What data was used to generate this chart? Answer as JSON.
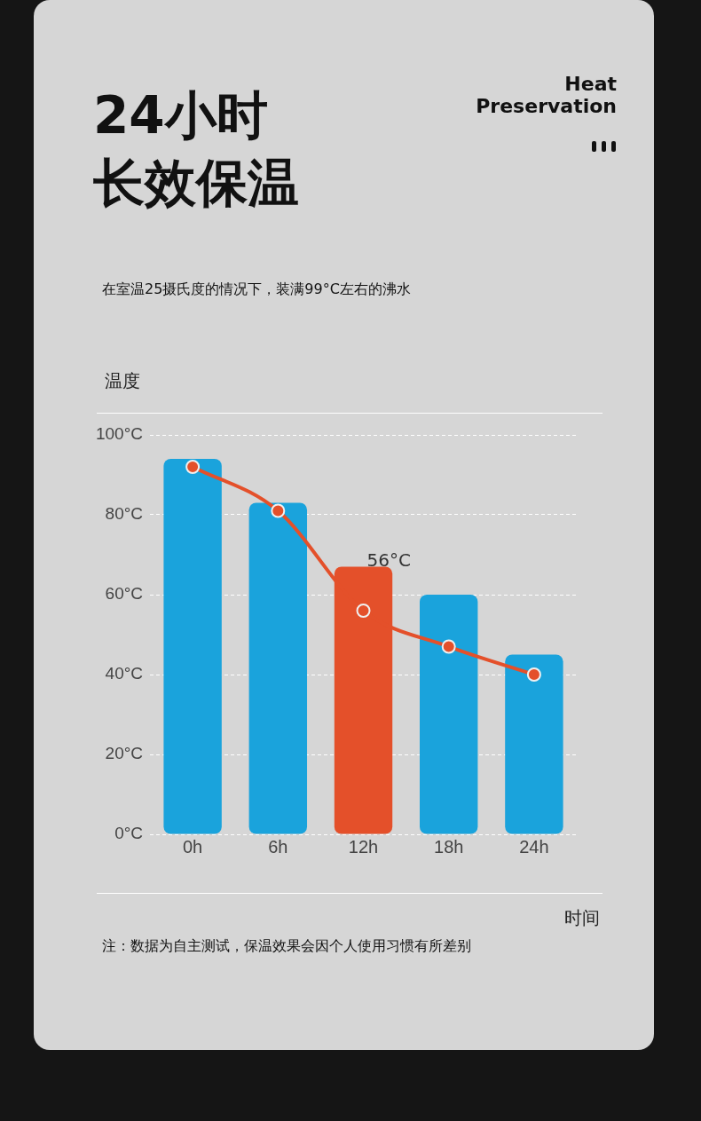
{
  "chart_data": {
    "type": "bar",
    "title": "24小时长效保温",
    "subtitle": "在室温25摄氏度的情况下，装满99°C左右的沸水",
    "ylabel": "温度",
    "xlabel": "时间",
    "annotations": [
      "Heat\nPreservation",
      "注：数据为自主测试，保温效果会因个人使用习惯有所差别"
    ],
    "categories": [
      "0h",
      "6h",
      "12h",
      "18h",
      "24h"
    ],
    "ylim": [
      0,
      100
    ],
    "yticks": [
      {
        "value": 0,
        "label": "0°C"
      },
      {
        "value": 20,
        "label": "20°C"
      },
      {
        "value": 40,
        "label": "40°C"
      },
      {
        "value": 60,
        "label": "60°C"
      },
      {
        "value": 80,
        "label": "80°C"
      },
      {
        "value": 100,
        "label": "100°C"
      }
    ],
    "grid": "y",
    "legend": false,
    "series": [
      {
        "values": [
          94,
          83,
          67,
          60,
          45
        ],
        "colors": [
          "#1aa3dc",
          "#1aa3dc",
          "#e4502a",
          "#1aa3dc",
          "#1aa3dc"
        ]
      },
      {
        "type": "line",
        "color": "#e4502a",
        "marker": "circle",
        "values": [
          92,
          81,
          56,
          47,
          40
        ],
        "value_labels": [
          null,
          null,
          "56°C",
          null,
          null
        ]
      }
    ]
  }
}
